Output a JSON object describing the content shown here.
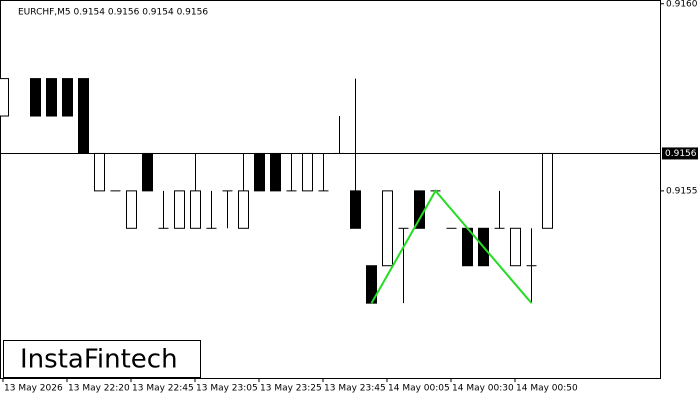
{
  "chart_data": {
    "type": "candlestick",
    "title": "EURCHF,M5  0.9154 0.9156 0.9154 0.9156",
    "logo": "InstaFintech",
    "open": [
      0.9157,
      null,
      0.9158,
      0.9158,
      0.9158,
      0.9158,
      0.9155,
      0.9155,
      0.9154,
      0.9156,
      0.9154,
      0.9154,
      0.9154,
      0.9154,
      0.9155,
      0.9154,
      0.9156,
      0.9156,
      0.9155,
      0.9155,
      0.9155,
      0.9156,
      0.9155,
      0.9153,
      0.9153,
      0.9154,
      0.9155,
      0.9155,
      0.9154,
      0.9154,
      0.9154,
      0.9154,
      0.9153,
      0.9153,
      0.9154
    ],
    "high": [
      0.9158,
      null,
      0.9158,
      0.9158,
      0.9158,
      0.9158,
      0.9156,
      0.9155,
      0.9155,
      0.9156,
      0.9155,
      0.9155,
      0.9156,
      0.9155,
      0.9155,
      0.9156,
      0.9156,
      0.9156,
      0.9156,
      0.9156,
      0.9156,
      0.9157,
      0.9158,
      0.9153,
      0.9155,
      0.9154,
      0.9155,
      0.9155,
      0.9154,
      0.9154,
      0.9154,
      0.9155,
      0.9154,
      0.9154,
      0.9156
    ],
    "low": [
      0.9157,
      null,
      0.9157,
      0.9157,
      0.9157,
      0.9156,
      0.9155,
      0.9155,
      0.9154,
      0.9155,
      0.9154,
      0.9154,
      0.9154,
      0.9154,
      0.9154,
      0.9154,
      0.9155,
      0.9155,
      0.9155,
      0.9155,
      0.9155,
      0.9156,
      0.9154,
      0.9152,
      0.9153,
      0.9152,
      0.9154,
      0.9155,
      0.9154,
      0.9153,
      0.9153,
      0.9154,
      0.9153,
      0.9152,
      0.9154
    ],
    "close": [
      0.9158,
      null,
      0.9157,
      0.9157,
      0.9157,
      0.9156,
      0.9156,
      0.9155,
      0.9155,
      0.9155,
      0.9154,
      0.9155,
      0.9155,
      0.9154,
      0.9155,
      0.9155,
      0.9155,
      0.9155,
      0.9155,
      0.9156,
      0.9155,
      0.9156,
      0.9154,
      0.9152,
      0.9155,
      0.9154,
      0.9154,
      0.9155,
      0.9154,
      0.9153,
      0.9153,
      0.9154,
      0.9154,
      0.9153,
      0.9156
    ],
    "ylim": [
      0.915,
      0.91601
    ],
    "yticks": [
      {
        "value": 0.916,
        "label": "0.9160"
      },
      0.9155
    ],
    "current_price": 0.9156,
    "xticks": [
      {
        "value": 0,
        "label": "13 May 2026"
      },
      {
        "value": 4,
        "label": "13 May 22:20"
      },
      {
        "value": 8,
        "label": "13 May 22:45"
      },
      {
        "value": 12,
        "label": "13 May 23:05"
      },
      {
        "value": 16,
        "label": "13 May 23:25"
      },
      {
        "value": 20,
        "label": "13 May 23:45"
      },
      {
        "value": 24,
        "label": "14 May 00:05"
      },
      {
        "value": 28,
        "label": "14 May 00:30"
      },
      {
        "value": 32,
        "label": "14 May 00:50"
      }
    ],
    "pattern": {
      "color": "#22dd22",
      "x": [
        23,
        27,
        33
      ],
      "y": [
        0.9152,
        0.9155,
        0.9152
      ]
    }
  }
}
